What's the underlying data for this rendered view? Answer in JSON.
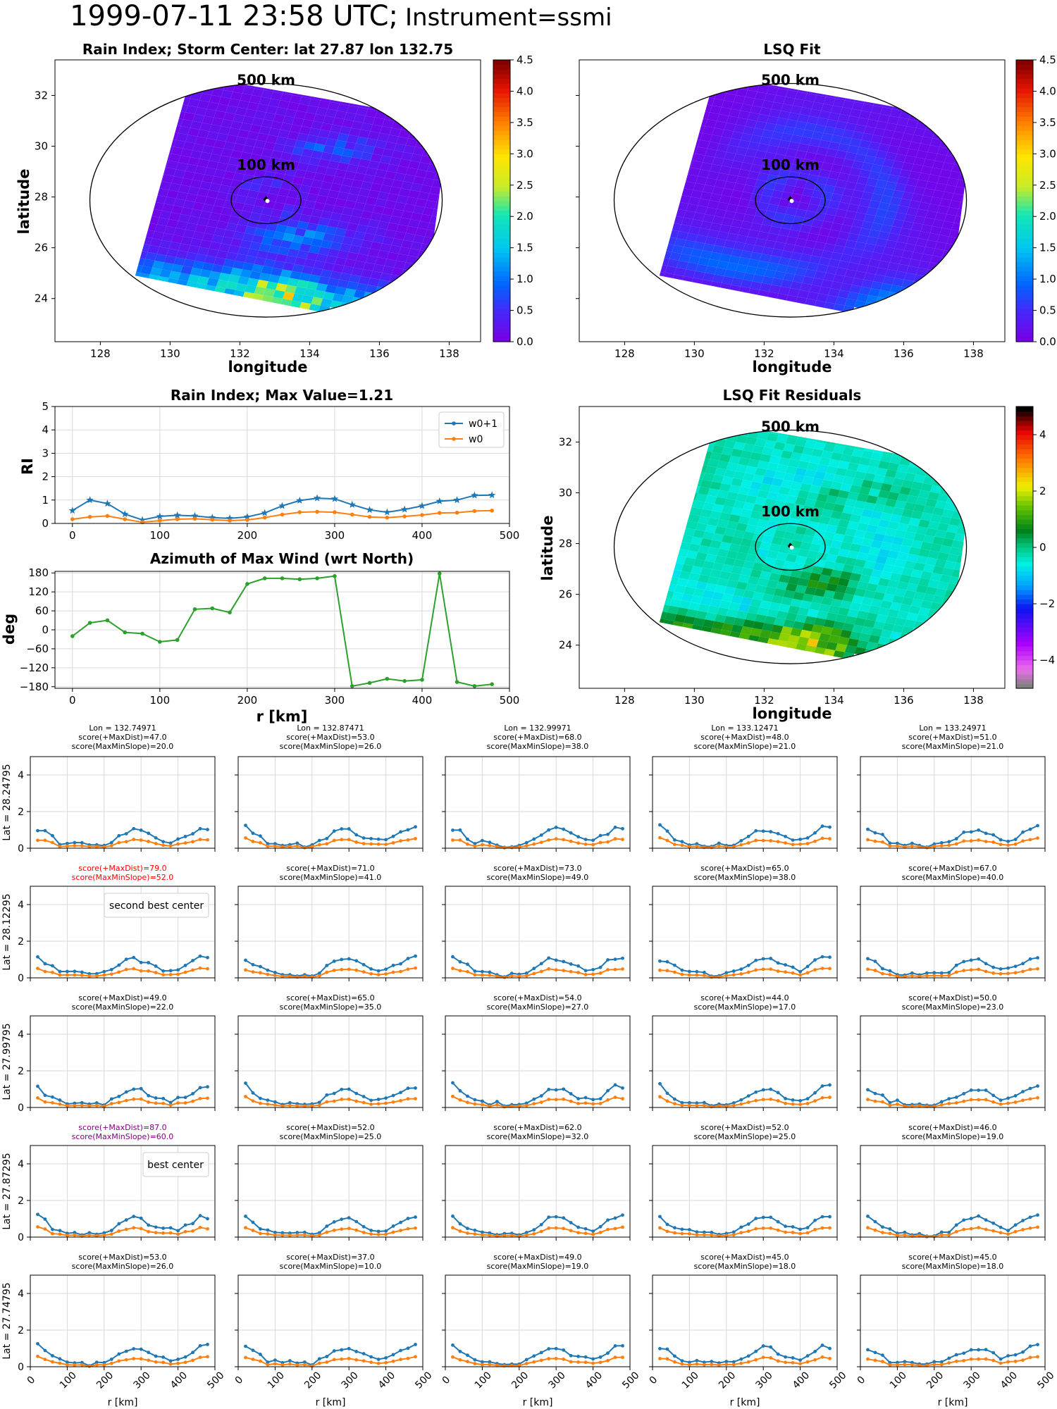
{
  "suptitle_main": "1999-07-11 23:58 UTC;",
  "suptitle_instr": "Instrument=ssmi",
  "colors": {
    "blue": "#1f77b4",
    "orange": "#ff7f0e",
    "green": "#2ca02c",
    "grid": "#d9d9d9",
    "red": "#ff0000",
    "purple": "#800080"
  },
  "map_top_left": {
    "title": "Rain Index; Storm Center: lat 27.87 lon 132.75",
    "xlabel": "longitude",
    "ylabel": "latitude",
    "xticks": [
      "128",
      "130",
      "132",
      "134",
      "136",
      "138"
    ],
    "yticks": [
      "24",
      "26",
      "28",
      "30",
      "32"
    ],
    "label_500": "500 km",
    "label_100": "100 km",
    "colorbar_ticks": [
      "0.0",
      "0.5",
      "1.0",
      "1.5",
      "2.0",
      "2.5",
      "3.0",
      "3.5",
      "4.0",
      "4.5"
    ],
    "colormap": "jet"
  },
  "map_top_right": {
    "title": "LSQ Fit",
    "xlabel": "longitude",
    "xticks": [
      "128",
      "130",
      "132",
      "134",
      "136",
      "138"
    ],
    "label_500": "500 km",
    "label_100": "100 km",
    "colorbar_ticks": [
      "0.0",
      "0.5",
      "1.0",
      "1.5",
      "2.0",
      "2.5",
      "3.0",
      "3.5",
      "4.0",
      "4.5"
    ],
    "colormap": "jet"
  },
  "map_residuals": {
    "title": "LSQ Fit Residuals",
    "xlabel": "longitude",
    "ylabel": "latitude",
    "xticks": [
      "128",
      "130",
      "132",
      "134",
      "136",
      "138"
    ],
    "yticks": [
      "24",
      "26",
      "28",
      "30",
      "32"
    ],
    "label_500": "500 km",
    "label_100": "100 km",
    "colorbar_ticks": [
      "−4",
      "−2",
      "0",
      "2",
      "4"
    ],
    "colormap": "gist_ncar-like"
  },
  "chart_data": [
    {
      "type": "line",
      "title": "Rain Index; Max Value=1.21",
      "xlabel": "",
      "ylabel": "RI",
      "xlim": [
        -20,
        500
      ],
      "ylim": [
        0,
        5
      ],
      "xticks": [
        "0",
        "100",
        "200",
        "300",
        "400",
        "500"
      ],
      "yticks": [
        "0",
        "1",
        "2",
        "3",
        "4",
        "5"
      ],
      "legend": "top-right",
      "x": [
        0,
        20,
        40,
        60,
        80,
        100,
        120,
        140,
        160,
        180,
        200,
        220,
        240,
        260,
        280,
        300,
        320,
        340,
        360,
        380,
        400,
        420,
        440,
        460,
        480
      ],
      "series": [
        {
          "name": "w0+1",
          "values": [
            0.55,
            1.0,
            0.85,
            0.4,
            0.15,
            0.3,
            0.35,
            0.32,
            0.25,
            0.22,
            0.28,
            0.45,
            0.75,
            0.98,
            1.08,
            1.05,
            0.8,
            0.58,
            0.48,
            0.6,
            0.75,
            0.95,
            1.0,
            1.2,
            1.21
          ]
        },
        {
          "name": "w0",
          "values": [
            0.18,
            0.28,
            0.32,
            0.18,
            0.05,
            0.12,
            0.18,
            0.2,
            0.16,
            0.12,
            0.15,
            0.25,
            0.38,
            0.48,
            0.5,
            0.48,
            0.38,
            0.28,
            0.25,
            0.3,
            0.36,
            0.45,
            0.46,
            0.53,
            0.55
          ]
        }
      ]
    },
    {
      "type": "line",
      "title": "Azimuth of Max Wind (wrt North)",
      "xlabel": "r [km]",
      "ylabel": "deg",
      "xlim": [
        -20,
        500
      ],
      "ylim": [
        -185,
        185
      ],
      "xticks": [
        "0",
        "100",
        "200",
        "300",
        "400",
        "500"
      ],
      "yticks": [
        "−180",
        "−120",
        "−60",
        "0",
        "60",
        "120",
        "180"
      ],
      "x": [
        0,
        20,
        40,
        60,
        80,
        100,
        120,
        140,
        160,
        180,
        200,
        220,
        240,
        260,
        280,
        300,
        320,
        340,
        360,
        380,
        400,
        420,
        440,
        460,
        480
      ],
      "series": [
        {
          "name": "",
          "values": [
            -20,
            22,
            30,
            -8,
            -12,
            -38,
            -32,
            65,
            68,
            55,
            145,
            163,
            163,
            160,
            163,
            170,
            -178,
            -168,
            -155,
            -162,
            -158,
            178,
            -165,
            -178,
            -172
          ]
        }
      ]
    }
  ],
  "grid": {
    "xticks": [
      "0",
      "100",
      "200",
      "300",
      "400",
      "500"
    ],
    "yticks": [
      "0",
      "2",
      "4"
    ],
    "xlabel": "r [km]",
    "row_labels": [
      "Lat = 28.24795",
      "Lat = 28.12295",
      "Lat = 27.99795",
      "Lat = 27.87295",
      "Lat = 27.74795"
    ],
    "lon_labels": [
      "Lon = 132.74971",
      "Lon = 132.87471",
      "Lon = 132.99971",
      "Lon = 133.12471",
      "Lon = 133.24971"
    ],
    "scores": [
      [
        [
          "score(+MaxDist)=47.0",
          "score(MaxMinSlope)=20.0"
        ],
        [
          "score(+MaxDist)=53.0",
          "score(MaxMinSlope)=26.0"
        ],
        [
          "score(+MaxDist)=68.0",
          "score(MaxMinSlope)=38.0"
        ],
        [
          "score(+MaxDist)=48.0",
          "score(MaxMinSlope)=21.0"
        ],
        [
          "score(+MaxDist)=51.0",
          "score(MaxMinSlope)=21.0"
        ]
      ],
      [
        [
          "score(+MaxDist)=79.0",
          "score(MaxMinSlope)=52.0"
        ],
        [
          "score(+MaxDist)=71.0",
          "score(MaxMinSlope)=41.0"
        ],
        [
          "score(+MaxDist)=73.0",
          "score(MaxMinSlope)=49.0"
        ],
        [
          "score(+MaxDist)=65.0",
          "score(MaxMinSlope)=38.0"
        ],
        [
          "score(+MaxDist)=67.0",
          "score(MaxMinSlope)=40.0"
        ]
      ],
      [
        [
          "score(+MaxDist)=49.0",
          "score(MaxMinSlope)=22.0"
        ],
        [
          "score(+MaxDist)=65.0",
          "score(MaxMinSlope)=35.0"
        ],
        [
          "score(+MaxDist)=54.0",
          "score(MaxMinSlope)=27.0"
        ],
        [
          "score(+MaxDist)=44.0",
          "score(MaxMinSlope)=17.0"
        ],
        [
          "score(+MaxDist)=50.0",
          "score(MaxMinSlope)=23.0"
        ]
      ],
      [
        [
          "score(+MaxDist)=87.0",
          "score(MaxMinSlope)=60.0"
        ],
        [
          "score(+MaxDist)=52.0",
          "score(MaxMinSlope)=25.0"
        ],
        [
          "score(+MaxDist)=62.0",
          "score(MaxMinSlope)=32.0"
        ],
        [
          "score(+MaxDist)=52.0",
          "score(MaxMinSlope)=25.0"
        ],
        [
          "score(+MaxDist)=46.0",
          "score(MaxMinSlope)=19.0"
        ]
      ],
      [
        [
          "score(+MaxDist)=53.0",
          "score(MaxMinSlope)=26.0"
        ],
        [
          "score(+MaxDist)=37.0",
          "score(MaxMinSlope)=10.0"
        ],
        [
          "score(+MaxDist)=49.0",
          "score(MaxMinSlope)=19.0"
        ],
        [
          "score(+MaxDist)=45.0",
          "score(MaxMinSlope)=18.0"
        ],
        [
          "score(+MaxDist)=45.0",
          "score(MaxMinSlope)=18.0"
        ]
      ]
    ],
    "score_colors": [
      [
        "#000000",
        "#000000",
        "#000000",
        "#000000",
        "#000000"
      ],
      [
        "#ff0000",
        "#000000",
        "#000000",
        "#000000",
        "#000000"
      ],
      [
        "#000000",
        "#000000",
        "#000000",
        "#000000",
        "#000000"
      ],
      [
        "#800080",
        "#000000",
        "#000000",
        "#000000",
        "#000000"
      ],
      [
        "#000000",
        "#000000",
        "#000000",
        "#000000",
        "#000000"
      ]
    ],
    "second_best_label": "second best center",
    "best_label": "best center"
  }
}
